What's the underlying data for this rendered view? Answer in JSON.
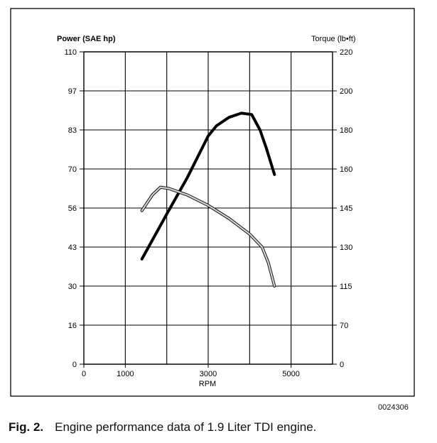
{
  "chart_data": {
    "type": "line",
    "xlabel": "RPM",
    "left_axis_label": "Power (SAE hp)",
    "right_axis_label": "Torque (lb•ft)",
    "x_ticks": [
      {
        "value": 0,
        "label": "0"
      },
      {
        "value": 1000,
        "label": "1000"
      },
      {
        "value": 3000,
        "label": "3000"
      },
      {
        "value": 5000,
        "label": "5000"
      }
    ],
    "xlim": [
      0,
      6000
    ],
    "left_ticks": [
      "0",
      "16",
      "30",
      "43",
      "56",
      "70",
      "83",
      "97",
      "110"
    ],
    "right_ticks": [
      "0",
      "70",
      "115",
      "130",
      "145",
      "160",
      "180",
      "200",
      "220"
    ],
    "grid": true,
    "series": [
      {
        "axis": "left",
        "style": "thick-black",
        "points": [
          {
            "x": 1400,
            "y": 39
          },
          {
            "x": 2000,
            "y": 54
          },
          {
            "x": 2500,
            "y": 67
          },
          {
            "x": 3000,
            "y": 81
          },
          {
            "x": 3200,
            "y": 84.5
          },
          {
            "x": 3500,
            "y": 87.5
          },
          {
            "x": 3800,
            "y": 89
          },
          {
            "x": 4050,
            "y": 88.5
          },
          {
            "x": 4250,
            "y": 83
          },
          {
            "x": 4400,
            "y": 77
          },
          {
            "x": 4600,
            "y": 68
          }
        ]
      },
      {
        "axis": "right",
        "style": "thin-grey",
        "points": [
          {
            "x": 1400,
            "y": 144
          },
          {
            "x": 1650,
            "y": 150
          },
          {
            "x": 1850,
            "y": 153
          },
          {
            "x": 2050,
            "y": 152.5
          },
          {
            "x": 2500,
            "y": 150
          },
          {
            "x": 3000,
            "y": 146
          },
          {
            "x": 3500,
            "y": 141
          },
          {
            "x": 4000,
            "y": 135
          },
          {
            "x": 4300,
            "y": 130
          },
          {
            "x": 4450,
            "y": 124
          },
          {
            "x": 4600,
            "y": 115
          }
        ]
      }
    ]
  },
  "reference_code": "0024306",
  "caption": {
    "figure_label": "Fig. 2.",
    "text": "Engine performance data of 1.9 Liter TDI engine."
  },
  "colors": {
    "power_line": "#000000",
    "torque_line": "#6f6f6f",
    "grid": "#000000"
  }
}
